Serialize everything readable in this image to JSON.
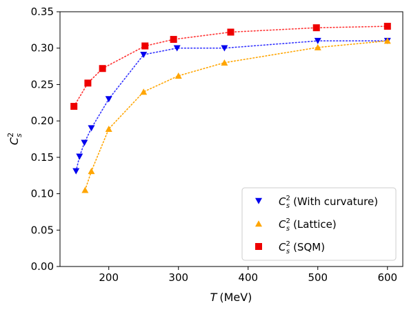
{
  "chart_data": {
    "type": "scatter",
    "xlabel_var": "T",
    "xlabel_unit": "(MeV)",
    "ylabel_base": "C",
    "ylabel_sup": "2",
    "ylabel_sub": "s",
    "xlim": [
      130,
      622
    ],
    "ylim": [
      0,
      0.35
    ],
    "xticks": [
      200,
      300,
      400,
      500,
      600
    ],
    "xtick_labels": [
      "200",
      "300",
      "400",
      "500",
      "600"
    ],
    "yticks": [
      0.0,
      0.05,
      0.1,
      0.15,
      0.2,
      0.25,
      0.3,
      0.35
    ],
    "ytick_labels": [
      "0.00",
      "0.05",
      "0.10",
      "0.15",
      "0.20",
      "0.25",
      "0.30",
      "0.35"
    ],
    "grid": false,
    "legend_position": "bottom-right",
    "series": [
      {
        "name": "(With curvature)",
        "legend_base": "C",
        "legend_sup": "2",
        "legend_sub": "s",
        "marker": "triangle-down",
        "color": "#0000ee",
        "line_color": "#3333ff",
        "x": [
          153,
          158,
          165,
          175,
          200,
          250,
          298,
          366,
          500,
          600
        ],
        "y": [
          0.131,
          0.151,
          0.17,
          0.19,
          0.23,
          0.291,
          0.3,
          0.3,
          0.31,
          0.31
        ]
      },
      {
        "name": "(Lattice)",
        "legend_base": "C",
        "legend_sup": "2",
        "legend_sub": "s",
        "marker": "triangle-up",
        "color": "#ffa500",
        "line_color": "#ffa500",
        "x": [
          166,
          175,
          200,
          250,
          300,
          366,
          500,
          600
        ],
        "y": [
          0.105,
          0.131,
          0.189,
          0.24,
          0.262,
          0.28,
          0.301,
          0.31
        ]
      },
      {
        "name": "(SQM)",
        "legend_base": "C",
        "legend_sup": "2",
        "legend_sub": "s",
        "marker": "square",
        "color": "#ee0000",
        "line_color": "#ff3333",
        "x": [
          150,
          170,
          191,
          252,
          293,
          375,
          498,
          600
        ],
        "y": [
          0.22,
          0.252,
          0.272,
          0.303,
          0.312,
          0.322,
          0.328,
          0.33
        ]
      }
    ]
  }
}
